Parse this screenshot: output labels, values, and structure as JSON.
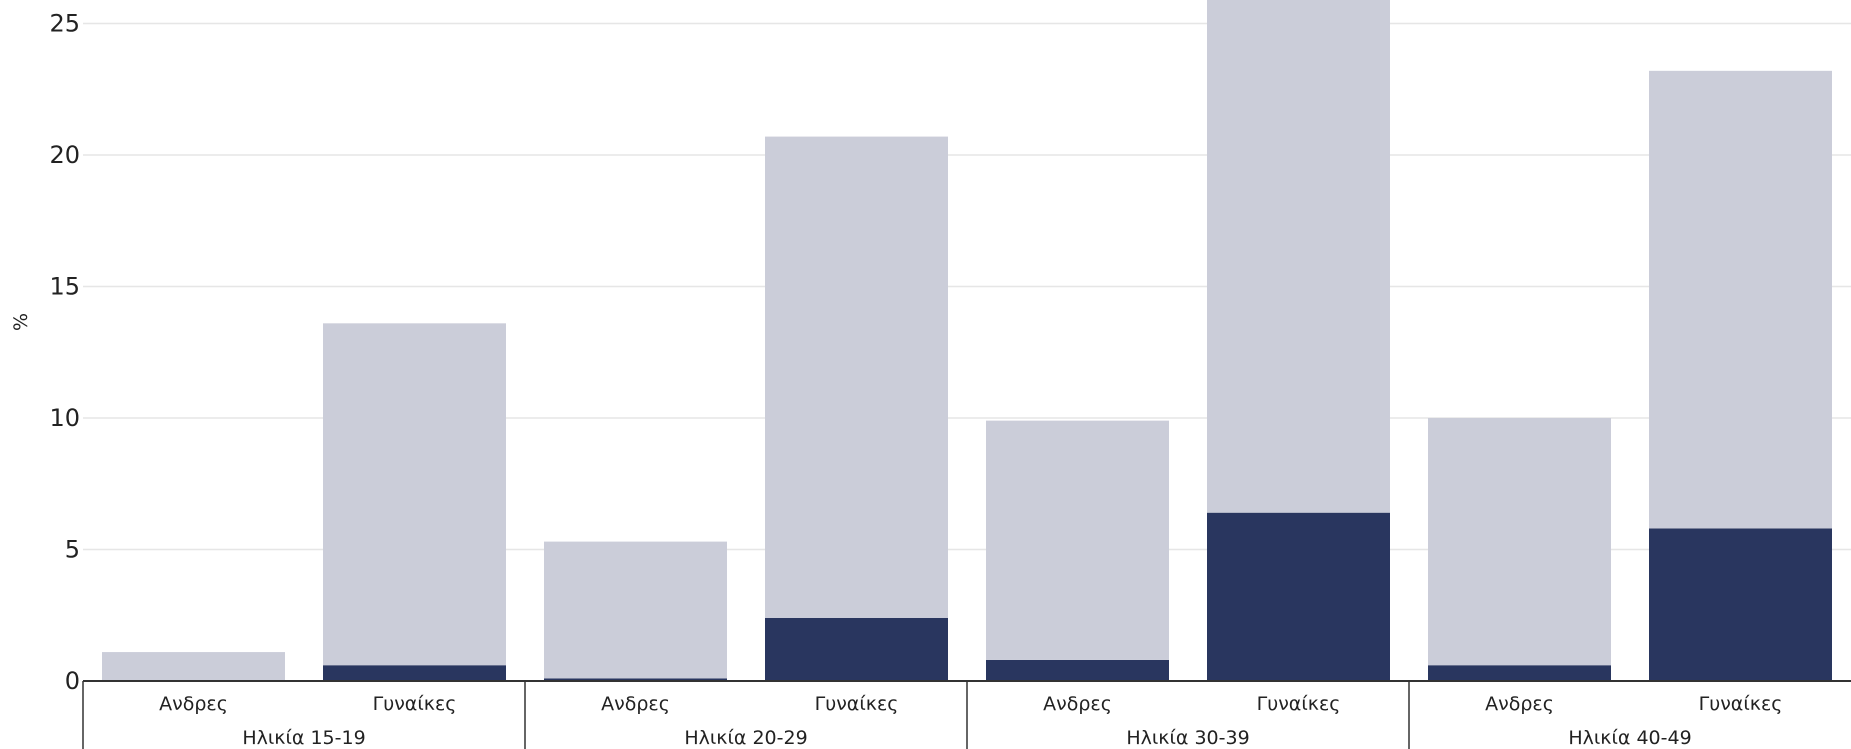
{
  "chart_data": {
    "type": "bar",
    "stacked": true,
    "ylabel": "%",
    "xlabel": "",
    "title": "",
    "ylim": [
      0,
      25.9
    ],
    "yticks": [
      0,
      5,
      10,
      15,
      20,
      25
    ],
    "grid": true,
    "groups": [
      "Ηλικία 15-19",
      "Ηλικία 20-29",
      "Ηλικία 30-39",
      "Ηλικία 40-49"
    ],
    "categories": [
      "Ανδρες",
      "Γυναίκες",
      "Ανδρες",
      "Γυναίκες",
      "Ανδρες",
      "Γυναίκες",
      "Ανδρες",
      "Γυναίκες"
    ],
    "series": [
      {
        "color": "#29365f",
        "values": [
          0.0,
          0.6,
          0.1,
          2.4,
          0.8,
          6.4,
          0.6,
          5.8
        ]
      },
      {
        "color": "#cbcdd9",
        "values": [
          1.1,
          13.0,
          5.2,
          18.3,
          9.1,
          19.5,
          9.4,
          17.4
        ]
      }
    ]
  }
}
